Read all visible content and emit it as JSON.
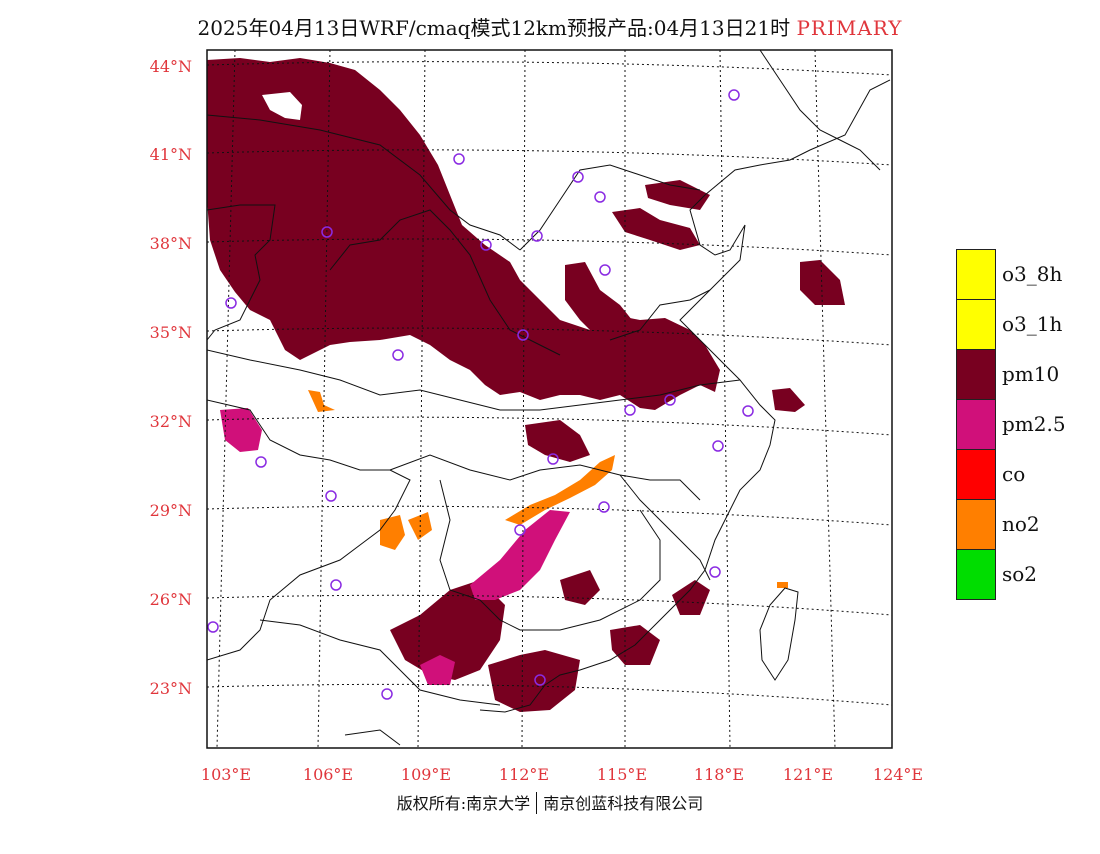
{
  "header": {
    "title": "2025年04月13日WRF/cmaq模式12km预报产品:04月13日21时",
    "tag": "PRIMARY"
  },
  "map": {
    "lat_labels": [
      "44°N",
      "41°N",
      "38°N",
      "35°N",
      "32°N",
      "29°N",
      "26°N",
      "23°N"
    ],
    "lon_labels": [
      "103°E",
      "106°E",
      "109°E",
      "112°E",
      "115°E",
      "118°E",
      "121°E",
      "124°E"
    ],
    "label_color": "#e0363c",
    "pollutant_colors": {
      "pm10": "#780020",
      "pm2.5": "#d0107a",
      "no2": "#ff7f00"
    }
  },
  "legend": [
    {
      "label": "o3_8h",
      "color": "#ffff00"
    },
    {
      "label": "o3_1h",
      "color": "#ffff00"
    },
    {
      "label": "pm10",
      "color": "#780020"
    },
    {
      "label": "pm2.5",
      "color": "#d0107a"
    },
    {
      "label": "co",
      "color": "#ff0000"
    },
    {
      "label": "no2",
      "color": "#ff7f00"
    },
    {
      "label": "so2",
      "color": "#00dd00"
    }
  ],
  "footer": {
    "copyright_left": "版权所有:南京大学",
    "copyright_right": "南京创蓝科技有限公司"
  }
}
